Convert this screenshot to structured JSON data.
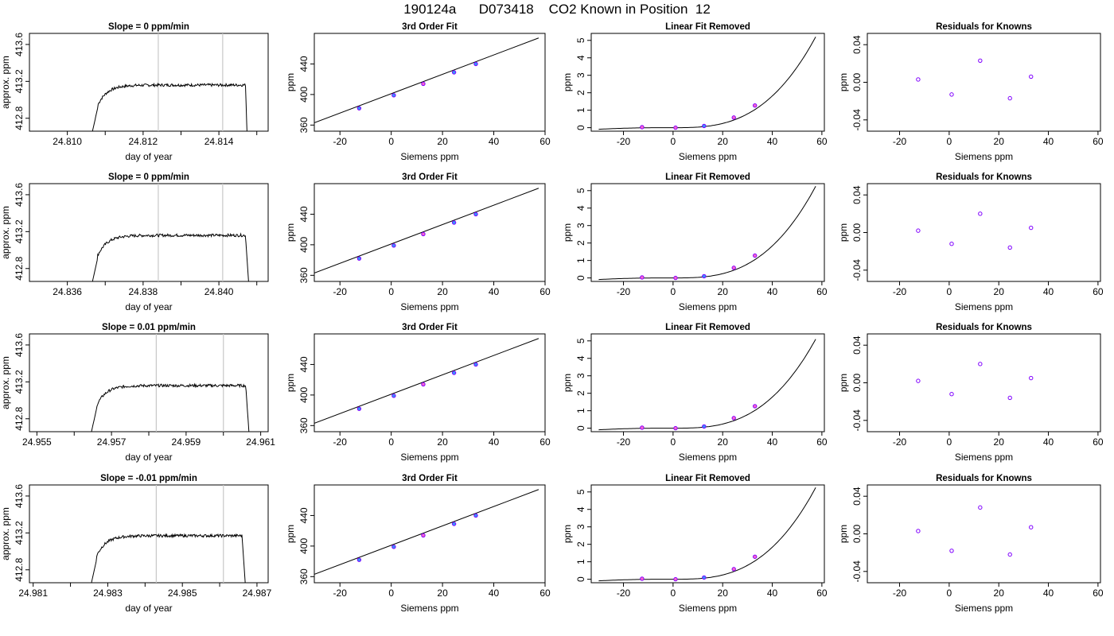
{
  "page_title": "190124a      D073418    CO2 Known in Position  12",
  "chart_data": {
    "type": "grid",
    "rows": [
      {
        "panels": [
          {
            "type": "line",
            "title": "Slope =  0  ppm/min",
            "xlabel": "day of year",
            "ylabel": "approx. ppm",
            "xlim": [
              24.809,
              24.8153
            ],
            "ylim": [
              412.66,
              413.72
            ],
            "xticks": [
              24.81,
              24.812,
              24.814
            ],
            "xtick_labels": [
              "24.810",
              "24.812",
              "24.814"
            ],
            "yticks": [
              412.8,
              413.2,
              413.6
            ],
            "ytick_labels": [
              "412.8",
              "413.2",
              "413.6"
            ],
            "vlines": [
              24.8124,
              24.8141
            ],
            "series": [
              {
                "start": 24.8105,
                "rise": 24.8108,
                "end": 24.8148,
                "plateau": 413.16,
                "drop": 24.8147
              }
            ]
          },
          {
            "type": "scatter+line",
            "title": "3rd Order Fit",
            "xlabel": "Siemens ppm",
            "ylabel": "ppm",
            "xlim": [
              -30,
              60
            ],
            "ylim": [
              352,
              480
            ],
            "xticks": [
              -20,
              0,
              20,
              40,
              60
            ],
            "yticks": [
              360,
              400,
              440
            ],
            "line": [
              [
                -30,
                363
              ],
              [
                57.5,
                474
              ]
            ],
            "points": [
              [
                -12.5,
                382
              ],
              [
                1,
                399
              ],
              [
                12.5,
                414
              ],
              [
                24.5,
                429
              ],
              [
                33,
                440
              ]
            ]
          },
          {
            "type": "scatter+line",
            "title": "Linear Fit Removed",
            "xlabel": "Siemens ppm",
            "ylabel": "ppm",
            "xlim": [
              -33,
              61
            ],
            "ylim": [
              -0.2,
              5.4
            ],
            "xticks": [
              -20,
              0,
              20,
              40,
              60
            ],
            "yticks": [
              0,
              1,
              2,
              3,
              4,
              5
            ],
            "curve_max": 5.2,
            "points": [
              [
                -12.5,
                0.03
              ],
              [
                1,
                0.0
              ],
              [
                12.5,
                0.1
              ],
              [
                24.5,
                0.58
              ],
              [
                33,
                1.27
              ]
            ]
          },
          {
            "type": "scatter",
            "title": "Residuals for Knowns",
            "xlabel": "Siemens ppm",
            "ylabel": "ppm",
            "xlim": [
              -33,
              61
            ],
            "ylim": [
              -0.052,
              0.052
            ],
            "xticks": [
              -20,
              0,
              20,
              40,
              60
            ],
            "yticks": [
              -0.04,
              0.0,
              0.04
            ],
            "ytick_labels": [
              "-0.04",
              "0.00",
              "0.04"
            ],
            "points": [
              [
                -12.5,
                0.003
              ],
              [
                1,
                -0.013
              ],
              [
                12.5,
                0.023
              ],
              [
                24.5,
                -0.017
              ],
              [
                33,
                0.006
              ]
            ]
          }
        ]
      },
      {
        "panels": [
          {
            "type": "line",
            "title": "Slope =  0  ppm/min",
            "xlabel": "day of year",
            "ylabel": "approx. ppm",
            "xlim": [
              24.835,
              24.8413
            ],
            "ylim": [
              412.66,
              413.72
            ],
            "xticks": [
              24.836,
              24.838,
              24.84
            ],
            "xtick_labels": [
              "24.836",
              "24.838",
              "24.840"
            ],
            "vlines": [
              24.8384,
              24.8401
            ],
            "yticks": [
              412.8,
              413.2,
              413.6
            ],
            "ytick_labels": [
              "412.8",
              "413.2",
              "413.6"
            ],
            "series": [
              {
                "start": 24.8365,
                "rise": 24.8368,
                "end": 24.8409,
                "plateau": 413.16,
                "drop": 24.8407
              }
            ]
          },
          {
            "type": "scatter+line",
            "title": "3rd Order Fit",
            "xlabel": "Siemens ppm",
            "ylabel": "ppm",
            "xlim": [
              -30,
              60
            ],
            "ylim": [
              352,
              480
            ],
            "xticks": [
              -20,
              0,
              20,
              40,
              60
            ],
            "yticks": [
              360,
              400,
              440
            ],
            "line": [
              [
                -30,
                363
              ],
              [
                57.5,
                474
              ]
            ],
            "points": [
              [
                -12.5,
                382
              ],
              [
                1,
                399
              ],
              [
                12.5,
                414
              ],
              [
                24.5,
                429
              ],
              [
                33,
                440
              ]
            ]
          },
          {
            "type": "scatter+line",
            "title": "Linear Fit Removed",
            "xlabel": "Siemens ppm",
            "ylabel": "ppm",
            "xlim": [
              -33,
              61
            ],
            "ylim": [
              -0.2,
              5.4
            ],
            "xticks": [
              -20,
              0,
              20,
              40,
              60
            ],
            "yticks": [
              0,
              1,
              2,
              3,
              4,
              5
            ],
            "curve_max": 5.25,
            "points": [
              [
                -12.5,
                0.03
              ],
              [
                1,
                0.0
              ],
              [
                12.5,
                0.1
              ],
              [
                24.5,
                0.58
              ],
              [
                33,
                1.28
              ]
            ]
          },
          {
            "type": "scatter",
            "title": "Residuals for Knowns",
            "xlabel": "Siemens ppm",
            "ylabel": "ppm",
            "xlim": [
              -33,
              61
            ],
            "ylim": [
              -0.052,
              0.052
            ],
            "xticks": [
              -20,
              0,
              20,
              40,
              60
            ],
            "yticks": [
              -0.04,
              0.0,
              0.04
            ],
            "ytick_labels": [
              "-0.04",
              "0.00",
              "0.04"
            ],
            "points": [
              [
                -12.5,
                0.002
              ],
              [
                1,
                -0.012
              ],
              [
                12.5,
                0.02
              ],
              [
                24.5,
                -0.016
              ],
              [
                33,
                0.005
              ]
            ]
          }
        ]
      },
      {
        "panels": [
          {
            "type": "line",
            "title": "Slope =  0.01  ppm/min",
            "xlabel": "day of year",
            "ylabel": "approx. ppm",
            "xlim": [
              24.9548,
              24.9612
            ],
            "ylim": [
              412.66,
              413.72
            ],
            "xticks": [
              24.955,
              24.957,
              24.959,
              24.961
            ],
            "xtick_labels": [
              "24.955",
              "24.957",
              "24.959",
              "24.961"
            ],
            "vlines": [
              24.9582,
              24.96
            ],
            "yticks": [
              412.8,
              413.2,
              413.6
            ],
            "ytick_labels": [
              "412.8",
              "413.2",
              "413.6"
            ],
            "series": [
              {
                "start": 24.9563,
                "rise": 24.9566,
                "end": 24.9608,
                "plateau": 413.16,
                "drop": 24.9606
              }
            ]
          },
          {
            "type": "scatter+line",
            "title": "3rd Order Fit",
            "xlabel": "Siemens ppm",
            "ylabel": "ppm",
            "xlim": [
              -30,
              60
            ],
            "ylim": [
              352,
              480
            ],
            "xticks": [
              -20,
              0,
              20,
              40,
              60
            ],
            "yticks": [
              360,
              400,
              440
            ],
            "line": [
              [
                -30,
                363
              ],
              [
                57.5,
                474
              ]
            ],
            "points": [
              [
                -12.5,
                382
              ],
              [
                1,
                399
              ],
              [
                12.5,
                414
              ],
              [
                24.5,
                429
              ],
              [
                33,
                440
              ]
            ]
          },
          {
            "type": "scatter+line",
            "title": "Linear Fit Removed",
            "xlabel": "Siemens ppm",
            "ylabel": "ppm",
            "xlim": [
              -33,
              61
            ],
            "ylim": [
              -0.2,
              5.4
            ],
            "xticks": [
              -20,
              0,
              20,
              40,
              60
            ],
            "yticks": [
              0,
              1,
              2,
              3,
              4,
              5
            ],
            "curve_max": 5.1,
            "points": [
              [
                -12.5,
                0.03
              ],
              [
                1,
                0.0
              ],
              [
                12.5,
                0.1
              ],
              [
                24.5,
                0.58
              ],
              [
                33,
                1.26
              ]
            ]
          },
          {
            "type": "scatter",
            "title": "Residuals for Knowns",
            "xlabel": "Siemens ppm",
            "ylabel": "ppm",
            "xlim": [
              -33,
              61
            ],
            "ylim": [
              -0.052,
              0.052
            ],
            "xticks": [
              -20,
              0,
              20,
              40,
              60
            ],
            "yticks": [
              -0.04,
              0.0,
              0.04
            ],
            "ytick_labels": [
              "-0.04",
              "0.00",
              "0.04"
            ],
            "points": [
              [
                -12.5,
                0.002
              ],
              [
                1,
                -0.012
              ],
              [
                12.5,
                0.02
              ],
              [
                24.5,
                -0.016
              ],
              [
                33,
                0.005
              ]
            ]
          }
        ]
      },
      {
        "panels": [
          {
            "type": "line",
            "title": "Slope =  -0.01  ppm/min",
            "xlabel": "day of year",
            "ylabel": "approx. ppm",
            "xlim": [
              24.9809,
              24.9873
            ],
            "ylim": [
              412.66,
              413.72
            ],
            "xticks": [
              24.981,
              24.983,
              24.985,
              24.987
            ],
            "xtick_labels": [
              "24.981",
              "24.983",
              "24.985",
              "24.987"
            ],
            "vlines": [
              24.9843,
              24.9861
            ],
            "yticks": [
              412.8,
              413.2,
              413.6
            ],
            "ytick_labels": [
              "412.8",
              "413.2",
              "413.6"
            ],
            "series": [
              {
                "start": 24.9824,
                "rise": 24.9827,
                "end": 24.9868,
                "plateau": 413.17,
                "drop": 24.9866
              }
            ]
          },
          {
            "type": "scatter+line",
            "title": "3rd Order Fit",
            "xlabel": "Siemens ppm",
            "ylabel": "ppm",
            "xlim": [
              -30,
              60
            ],
            "ylim": [
              352,
              480
            ],
            "xticks": [
              -20,
              0,
              20,
              40,
              60
            ],
            "yticks": [
              360,
              400,
              440
            ],
            "line": [
              [
                -30,
                363
              ],
              [
                57.5,
                474
              ]
            ],
            "points": [
              [
                -12.5,
                382
              ],
              [
                1,
                399
              ],
              [
                12.5,
                414
              ],
              [
                24.5,
                429
              ],
              [
                33,
                440
              ]
            ]
          },
          {
            "type": "scatter+line",
            "title": "Linear Fit Removed",
            "xlabel": "Siemens ppm",
            "ylabel": "ppm",
            "xlim": [
              -33,
              61
            ],
            "ylim": [
              -0.2,
              5.4
            ],
            "xticks": [
              -20,
              0,
              20,
              40,
              60
            ],
            "yticks": [
              0,
              1,
              2,
              3,
              4,
              5
            ],
            "curve_max": 5.25,
            "points": [
              [
                -12.5,
                0.03
              ],
              [
                1,
                0.0
              ],
              [
                12.5,
                0.1
              ],
              [
                24.5,
                0.58
              ],
              [
                33,
                1.29
              ]
            ]
          },
          {
            "type": "scatter",
            "title": "Residuals for Knowns",
            "xlabel": "Siemens ppm",
            "ylabel": "ppm",
            "xlim": [
              -33,
              61
            ],
            "ylim": [
              -0.052,
              0.052
            ],
            "xticks": [
              -20,
              0,
              20,
              40,
              60
            ],
            "yticks": [
              -0.04,
              0.0,
              0.04
            ],
            "ytick_labels": [
              "-0.04",
              "0.00",
              "0.04"
            ],
            "points": [
              [
                -12.5,
                0.003
              ],
              [
                1,
                -0.018
              ],
              [
                12.5,
                0.028
              ],
              [
                24.5,
                -0.022
              ],
              [
                33,
                0.007
              ]
            ]
          }
        ]
      }
    ]
  },
  "colors": {
    "point_outline": "#8000ff",
    "point_fill_blue": "#3399ff",
    "point_fill_pink": "#ff66cc",
    "vline": "#c8c8c8",
    "axis": "#000000"
  }
}
